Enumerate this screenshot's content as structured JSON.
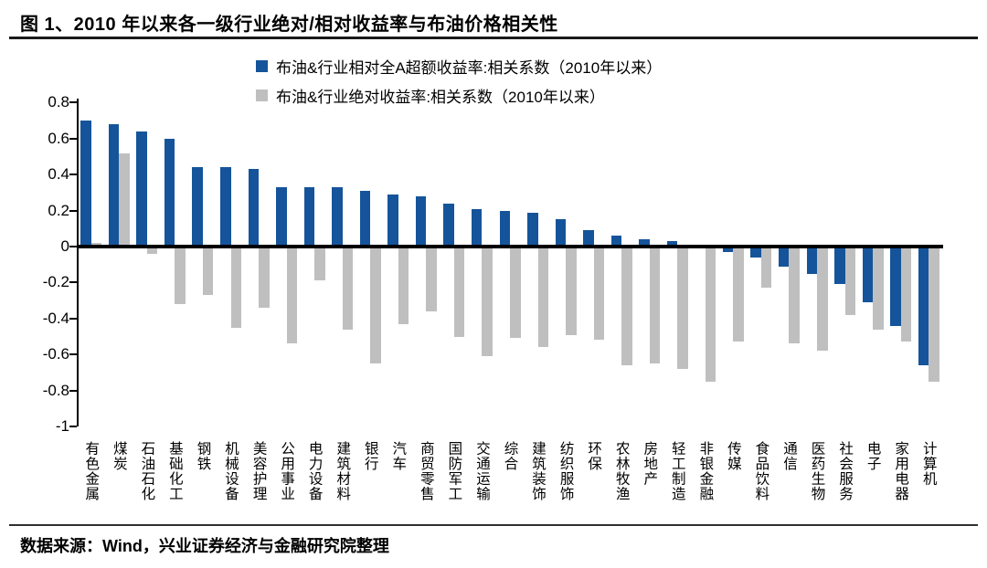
{
  "page": {
    "title": "图 1、2010 年以来各一级行业绝对/相对收益率与布油价格相关性",
    "source_note": "数据来源：Wind，兴业证券经济与金融研究院整理"
  },
  "colors": {
    "series_blue": "#15549A",
    "series_gray": "#BFBFBF",
    "axis": "#000000"
  },
  "chart_data": {
    "type": "bar",
    "title": "2010 年以来各一级行业绝对/相对收益率与布油价格相关性",
    "categories": [
      "有色金属",
      "煤炭",
      "石油石化",
      "基础化工",
      "钢铁",
      "机械设备",
      "美容护理",
      "公用事业",
      "电力设备",
      "建筑材料",
      "银行",
      "汽车",
      "商贸零售",
      "国防军工",
      "交通运输",
      "综合",
      "建筑装饰",
      "纺织服饰",
      "环保",
      "农林牧渔",
      "房地产",
      "轻工制造",
      "非银金融",
      "传媒",
      "食品饮料",
      "通信",
      "医药生物",
      "社会服务",
      "电子",
      "家用电器",
      "计算机"
    ],
    "series": [
      {
        "name": "布油&行业相对全A超额收益率:相关系数（2010年以来）",
        "color": "#15549A",
        "values": [
          0.7,
          0.68,
          0.64,
          0.6,
          0.44,
          0.44,
          0.43,
          0.33,
          0.33,
          0.33,
          0.31,
          0.29,
          0.28,
          0.24,
          0.21,
          0.2,
          0.19,
          0.15,
          0.09,
          0.06,
          0.04,
          0.03,
          0.0,
          -0.03,
          -0.06,
          -0.11,
          -0.15,
          -0.21,
          -0.31,
          -0.44,
          -0.66
        ]
      },
      {
        "name": "布油&行业绝对收益率:相关系数（2010年以来）",
        "color": "#BFBFBF",
        "values": [
          0.02,
          0.52,
          -0.04,
          -0.32,
          -0.27,
          -0.45,
          -0.34,
          -0.54,
          -0.19,
          -0.46,
          -0.65,
          -0.43,
          -0.36,
          -0.5,
          -0.61,
          -0.51,
          -0.56,
          -0.49,
          -0.52,
          -0.66,
          -0.65,
          -0.68,
          -0.75,
          -0.53,
          -0.23,
          -0.54,
          -0.58,
          -0.38,
          -0.46,
          -0.53,
          -0.75
        ]
      }
    ],
    "xlabel": "",
    "ylabel": "",
    "ylim": [
      -1,
      0.8
    ],
    "yticks": [
      0.8,
      0.6,
      0.4,
      0.2,
      0,
      -0.2,
      -0.4,
      -0.6,
      -0.8,
      -1
    ],
    "grid": false,
    "legend_position": "top-center"
  }
}
